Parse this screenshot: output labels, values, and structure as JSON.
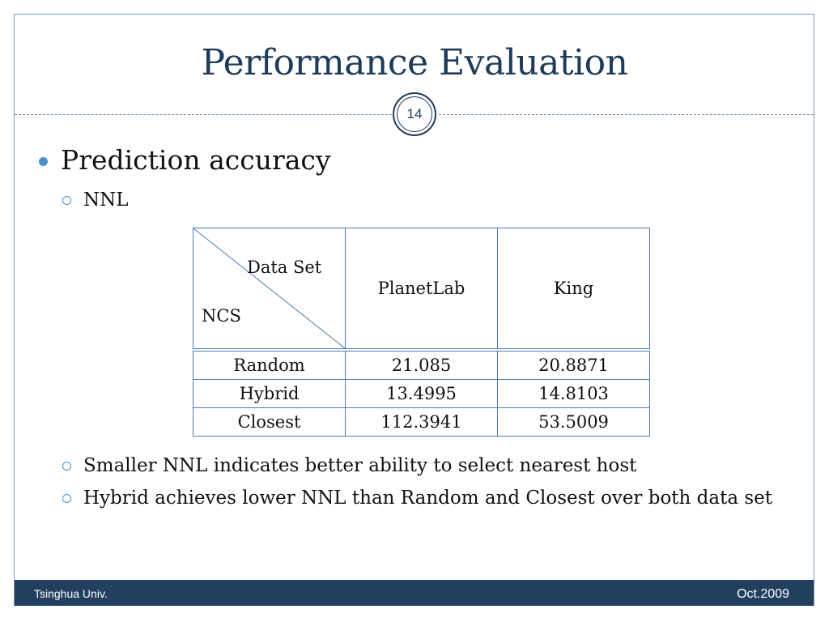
{
  "slide": {
    "title": "Performance Evaluation",
    "page_number": "14",
    "bullet": "Prediction accuracy",
    "sub_bullets": [
      "NNL",
      "Smaller NNL indicates better ability to select nearest host",
      "Hybrid achieves lower NNL than Random and Closest over both data set"
    ]
  },
  "table": {
    "corner_top": "Data Set",
    "corner_bottom": "NCS",
    "columns": [
      "PlanetLab",
      "King"
    ],
    "rows": [
      {
        "label": "Random",
        "values": [
          "21.085",
          "20.8871"
        ]
      },
      {
        "label": "Hybrid",
        "values": [
          "13.4995",
          "14.8103"
        ]
      },
      {
        "label": "Closest",
        "values": [
          "112.3941",
          "53.5009"
        ]
      }
    ]
  },
  "footer": {
    "left": "Tsinghua Univ.",
    "right": "Oct.2009"
  },
  "colors": {
    "title": "#1f3b5a",
    "accent": "#4a90c8",
    "footer_bg": "#223f5f"
  }
}
